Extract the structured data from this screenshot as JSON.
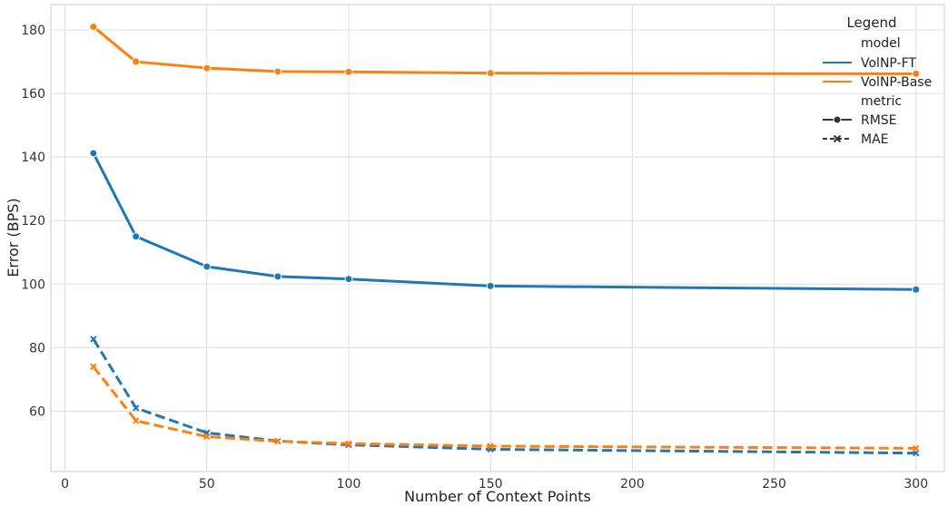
{
  "chart_data": {
    "type": "line",
    "xlabel": "Number of Context Points",
    "ylabel": "Error (BPS)",
    "xlim": [
      -5,
      310
    ],
    "ylim": [
      41,
      188
    ],
    "xticks": [
      0,
      50,
      100,
      150,
      200,
      250,
      300
    ],
    "yticks": [
      60,
      80,
      100,
      120,
      140,
      160,
      180
    ],
    "grid": true,
    "x": [
      10,
      25,
      50,
      75,
      100,
      150,
      300
    ],
    "series": [
      {
        "model": "VolNP-FT",
        "metric": "RMSE",
        "color": "#1f77b4",
        "values": [
          141.2,
          115.0,
          105.5,
          102.4,
          101.6,
          99.4,
          98.3
        ]
      },
      {
        "model": "VolNP-Base",
        "metric": "RMSE",
        "color": "#ff7f0e",
        "values": [
          181.0,
          170.0,
          168.0,
          166.9,
          166.8,
          166.4,
          166.2
        ]
      },
      {
        "model": "VolNP-FT",
        "metric": "MAE",
        "color": "#1f77b4",
        "values": [
          82.7,
          61.0,
          53.2,
          50.6,
          49.4,
          48.0,
          46.8
        ]
      },
      {
        "model": "VolNP-Base",
        "metric": "MAE",
        "color": "#ff7f0e",
        "values": [
          74.0,
          57.0,
          52.0,
          50.5,
          49.8,
          49.0,
          48.3
        ]
      }
    ],
    "legend": {
      "placement": "top-right",
      "title": "Legend",
      "model_heading": "model",
      "metric_heading": "metric",
      "models": [
        {
          "label": "VolNP-FT",
          "color": "#1f77b4"
        },
        {
          "label": "VolNP-Base",
          "color": "#ff7f0e"
        }
      ],
      "metrics": [
        {
          "label": "RMSE",
          "style": "solid",
          "marker": "circle"
        },
        {
          "label": "MAE",
          "style": "dashed",
          "marker": "x"
        }
      ]
    }
  }
}
